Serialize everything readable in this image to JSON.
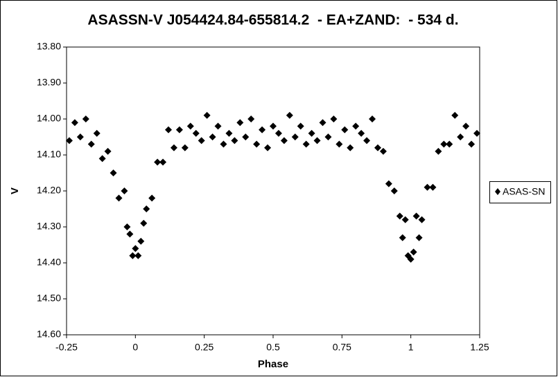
{
  "chart_data": {
    "type": "scatter",
    "title": "ASASSN-V J054424.84-655814.2  - EA+ZAND:  - 534 d.",
    "x_label": "Phase",
    "y_label": "V",
    "xlim": [
      -0.25,
      1.25
    ],
    "xticks": [
      -0.25,
      0,
      0.25,
      0.5,
      0.75,
      1,
      1.25
    ],
    "ylim": [
      13.8,
      14.6
    ],
    "y_inverted": true,
    "yticks": [
      {
        "value": 13.8,
        "label": "13.80"
      },
      {
        "value": 13.9,
        "label": "13.90"
      },
      {
        "value": 14.0,
        "label": "14.00"
      },
      {
        "value": 14.1,
        "label": "14.10"
      },
      {
        "value": 14.2,
        "label": "14.20"
      },
      {
        "value": 14.3,
        "label": "14.30"
      },
      {
        "value": 14.4,
        "label": "14.40"
      },
      {
        "value": 14.5,
        "label": "14.50"
      },
      {
        "value": 14.6,
        "label": "14.60"
      }
    ],
    "grid": false,
    "legend": "right",
    "x": [
      -0.24,
      -0.22,
      -0.2,
      -0.18,
      -0.16,
      -0.14,
      -0.12,
      -0.1,
      -0.08,
      -0.06,
      -0.04,
      -0.02,
      0,
      0.02,
      0.04,
      0.06,
      0.08,
      0.1,
      0.12,
      0.14,
      0.16,
      0.18,
      0.2,
      0.22,
      0.24,
      0.26,
      0.28,
      0.3,
      0.32,
      0.34,
      0.36,
      0.38,
      0.4,
      0.42,
      0.44,
      0.46,
      0.48,
      0.5,
      0.52,
      0.54,
      0.56,
      0.58,
      0.6,
      0.62,
      0.64,
      0.66,
      0.68,
      0.7,
      0.72,
      0.74,
      0.76,
      0.78,
      0.8,
      0.82,
      0.84,
      0.86,
      0.88,
      0.9,
      0.92,
      0.94,
      0.96,
      0.98,
      1,
      1.02,
      1.04,
      1.06,
      1.08,
      1.1,
      1.12,
      1.14,
      1.16,
      1.18,
      1.2,
      1.22,
      1.24,
      -0.01,
      0.01,
      0.99,
      1.01,
      -0.03,
      0.03,
      0.97,
      1.03
    ],
    "series": [
      {
        "name": "ASAS-SN",
        "color": "#000000",
        "values": [
          14.06,
          14.01,
          14.05,
          14.0,
          14.07,
          14.04,
          14.11,
          14.09,
          14.15,
          14.22,
          14.2,
          14.32,
          14.36,
          14.34,
          14.25,
          14.22,
          14.12,
          14.12,
          14.03,
          14.08,
          14.03,
          14.08,
          14.02,
          14.04,
          14.06,
          13.99,
          14.05,
          14.02,
          14.07,
          14.04,
          14.06,
          14.01,
          14.05,
          14.0,
          14.07,
          14.03,
          14.08,
          14.02,
          14.04,
          14.06,
          13.99,
          14.05,
          14.02,
          14.07,
          14.04,
          14.06,
          14.01,
          14.05,
          14.0,
          14.07,
          14.03,
          14.08,
          14.02,
          14.04,
          14.06,
          14.0,
          14.08,
          14.09,
          14.18,
          14.2,
          14.27,
          14.28,
          14.39,
          14.27,
          14.28,
          14.19,
          14.19,
          14.09,
          14.07,
          14.07,
          13.99,
          14.05,
          14.02,
          14.07,
          14.04,
          14.38,
          14.38,
          14.38,
          14.37,
          14.3,
          14.29,
          14.33,
          14.33
        ]
      }
    ]
  }
}
